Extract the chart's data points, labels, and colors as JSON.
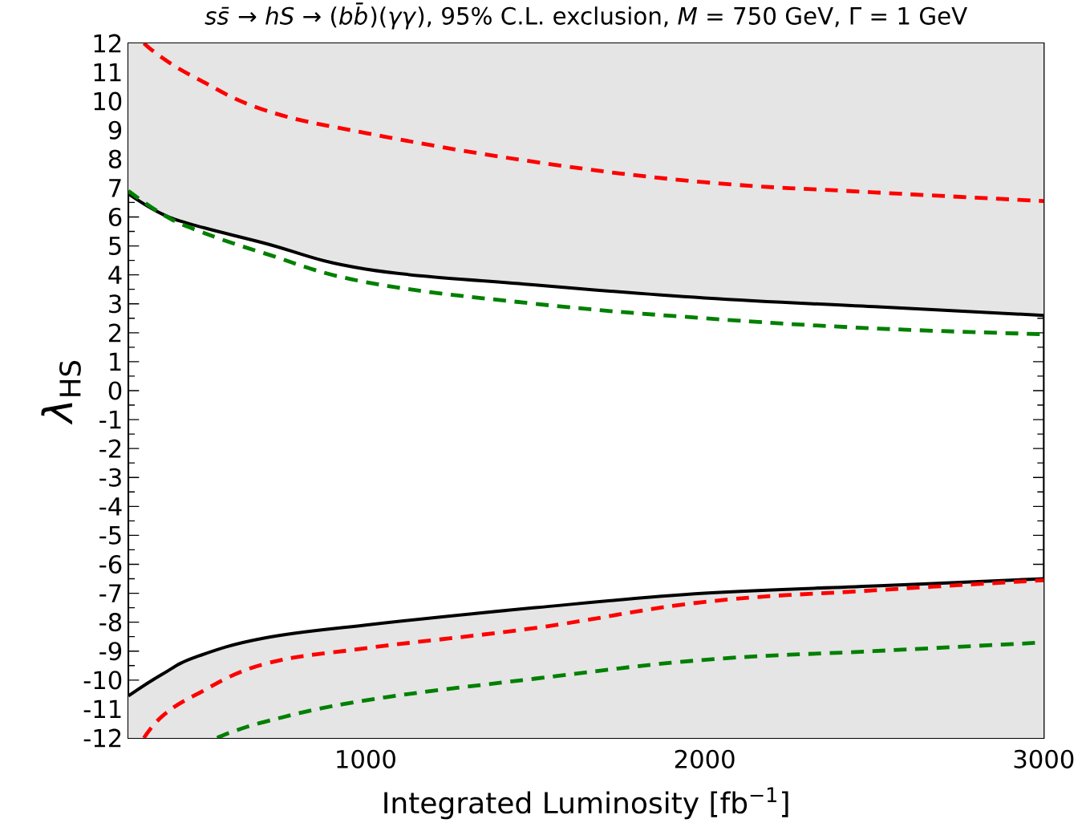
{
  "chart_data": {
    "type": "line",
    "title": "*ss̄* → *hS* → (*bb̄*)(*γγ*), 95% C.L. exclusion, *M* = 750 GeV, Γ = 1 GeV",
    "xlabel": "Integrated Luminosity [fb$^{−1}$]",
    "ylabel": "*λ*$_{HS}$",
    "xlim": [
      300,
      3000
    ],
    "xticks": [
      1000,
      2000,
      3000
    ],
    "ylim": [
      -12,
      12
    ],
    "yticks": [
      -12,
      -11,
      -10,
      -9,
      -8,
      -7,
      -6,
      -5,
      -4,
      -3,
      -2,
      -1,
      0,
      1,
      2,
      3,
      4,
      5,
      6,
      7,
      8,
      9,
      10,
      11,
      12
    ],
    "marker": "none",
    "series": [
      {
        "color": "#000000",
        "line_style": "solid",
        "x": [
          300,
          400,
          500,
          700,
          1000,
          1500,
          2000,
          2500,
          3000
        ],
        "values": [
          6.8,
          6.1,
          5.7,
          5.1,
          4.2,
          3.65,
          3.2,
          2.9,
          2.6
        ],
        "lower": [
          6.8,
          6.1,
          5.7,
          5.1,
          4.2,
          3.65,
          3.2,
          2.9,
          2.6
        ],
        "upper": [
          12,
          12,
          12,
          12,
          12,
          12,
          12,
          12,
          12
        ]
      },
      {
        "color": "#000000",
        "line_style": "solid",
        "x": [
          300,
          400,
          500,
          700,
          1000,
          1500,
          2000,
          2500,
          3000
        ],
        "values": [
          -10.55,
          -9.8,
          -9.2,
          -8.55,
          -8.1,
          -7.5,
          -7.0,
          -6.75,
          -6.5
        ],
        "lower": [
          -12,
          -12,
          -12,
          -12,
          -12,
          -12,
          -12,
          -12,
          -12
        ],
        "upper": [
          -10.55,
          -9.8,
          -9.2,
          -8.55,
          -8.1,
          -7.5,
          -7.0,
          -6.75,
          -6.5
        ]
      },
      {
        "color": "#ff0000",
        "line_style": "dashed",
        "x": [
          346,
          400,
          500,
          700,
          1000,
          1500,
          2000,
          2500,
          3000
        ],
        "values": [
          12,
          11.5,
          10.8,
          9.7,
          8.9,
          7.9,
          7.2,
          6.85,
          6.55
        ]
      },
      {
        "color": "#008000",
        "line_style": "dashed",
        "x": [
          300,
          400,
          500,
          700,
          1000,
          1500,
          2000,
          2500,
          3000
        ],
        "values": [
          6.9,
          6.1,
          5.55,
          4.75,
          3.75,
          3.0,
          2.5,
          2.15,
          1.95
        ]
      },
      {
        "color": "#ff0000",
        "line_style": "dashed",
        "x": [
          346,
          400,
          500,
          700,
          1000,
          1500,
          2000,
          2500,
          3000
        ],
        "values": [
          -12,
          -11.25,
          -10.5,
          -9.45,
          -8.9,
          -8.2,
          -7.3,
          -6.9,
          -6.55
        ]
      },
      {
        "color": "#008000",
        "line_style": "dashed",
        "x": [
          562,
          700,
          1000,
          1500,
          2000,
          2500,
          3000
        ],
        "values": [
          -12,
          -11.45,
          -10.7,
          -9.95,
          -9.3,
          -9.0,
          -8.7
        ]
      }
    ]
  }
}
